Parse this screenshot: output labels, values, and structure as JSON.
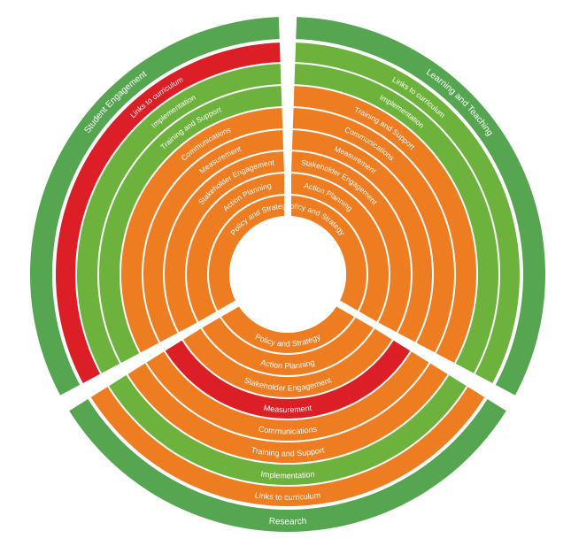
{
  "diagram": {
    "title_hidden": "",
    "colors": {
      "orange": "#EE7D22",
      "green": "#6DB23C",
      "red": "#DC1F26",
      "outer_green": "#55A551",
      "background": "#FFFFFF"
    },
    "rings": [
      "Policy and Strategy",
      "Action Planning",
      "Stakeholder Engagement",
      "Measurement",
      "Communications",
      "Training and Support",
      "Implementation",
      "Links to curriculum"
    ],
    "sections": [
      {
        "name": "Student Engagement",
        "ring_colors": [
          "orange",
          "orange",
          "orange",
          "orange",
          "orange",
          "green",
          "green",
          "red"
        ]
      },
      {
        "name": "Learning and Teaching",
        "ring_colors": [
          "orange",
          "orange",
          "orange",
          "orange",
          "orange",
          "orange",
          "green",
          "green"
        ]
      },
      {
        "name": "Research",
        "ring_colors": [
          "orange",
          "orange",
          "orange",
          "red",
          "orange",
          "orange",
          "green",
          "orange"
        ]
      }
    ]
  }
}
